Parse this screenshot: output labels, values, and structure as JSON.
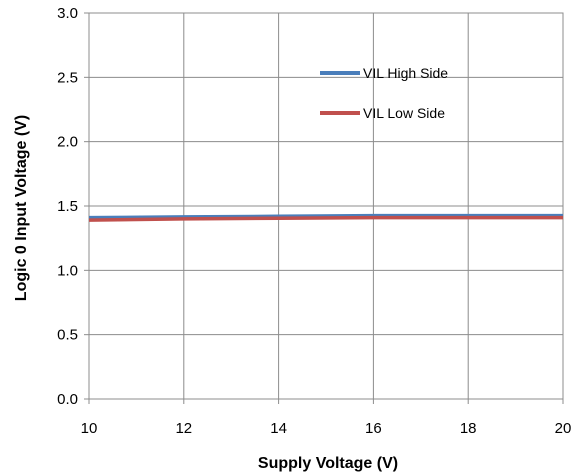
{
  "chart_data": {
    "type": "line",
    "title": "",
    "xlabel": "Supply Voltage (V)",
    "ylabel": "Logic 0 Input Voltage (V)",
    "xlim": [
      10,
      20
    ],
    "ylim": [
      0,
      3
    ],
    "x_ticks": [
      10,
      12,
      14,
      16,
      18,
      20
    ],
    "y_ticks": [
      0,
      0.5,
      1,
      1.5,
      2,
      2.5,
      3
    ],
    "x_tick_labels": [
      "10",
      "12",
      "14",
      "16",
      "18",
      "20"
    ],
    "y_tick_labels": [
      "0.0",
      "0.5",
      "1.0",
      "1.5",
      "2.0",
      "2.5",
      "3.0"
    ],
    "grid": true,
    "legend_position": "top-right",
    "series": [
      {
        "name": "VIL High Side",
        "color": "#4a7ebb",
        "x": [
          10,
          12,
          14,
          16,
          18,
          20
        ],
        "y": [
          1.41,
          1.415,
          1.42,
          1.425,
          1.425,
          1.425
        ]
      },
      {
        "name": "VIL Low Side",
        "color": "#c0504d",
        "x": [
          10,
          12,
          14,
          16,
          18,
          20
        ],
        "y": [
          1.39,
          1.4,
          1.405,
          1.41,
          1.41,
          1.41
        ]
      }
    ]
  }
}
